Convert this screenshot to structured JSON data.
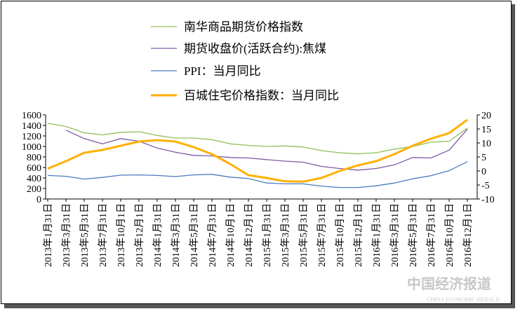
{
  "chart_data": {
    "type": "line",
    "categories": [
      "2013年1月31日",
      "2013年3月31日",
      "2013年5月31日",
      "2013年7月31日",
      "2013年10月1日",
      "2013年12月1日",
      "2014年1月31日",
      "2014年3月31日",
      "2014年5月31日",
      "2014年7月31日",
      "2014年10月1日",
      "2014年12月1日",
      "2015年1月31日",
      "2015年3月31日",
      "2015年5月31日",
      "2015年7月31日",
      "2015年10月1日",
      "2015年12月1日",
      "2016年1月31日",
      "2016年3月31日",
      "2016年5月31日",
      "2016年7月31日",
      "2016年10月1日",
      "2016年12月1日"
    ],
    "series": [
      {
        "name": "南华商品期货价格指数",
        "color": "#8fbf59",
        "values": [
          1440,
          1380,
          1260,
          1220,
          1270,
          1280,
          1210,
          1160,
          1160,
          1130,
          1050,
          1020,
          1000,
          1010,
          990,
          920,
          880,
          860,
          880,
          950,
          1000,
          1080,
          1100,
          1350
        ]
      },
      {
        "name": "期货收盘价(活跃合约):焦煤",
        "color": "#7b5aa6",
        "values": [
          null,
          1310,
          1150,
          1050,
          1150,
          1100,
          970,
          890,
          830,
          820,
          790,
          780,
          750,
          720,
          700,
          620,
          580,
          550,
          580,
          650,
          790,
          780,
          930,
          1330
        ]
      },
      {
        "name": "PPI：当月同比",
        "color": "#4a7cc1",
        "axis": "y2",
        "values": [
          -1.6,
          -1.9,
          -2.9,
          -2.3,
          -1.5,
          -1.4,
          -1.6,
          -2.0,
          -1.4,
          -1.2,
          -2.2,
          -2.7,
          -4.3,
          -4.6,
          -4.6,
          -5.4,
          -5.9,
          -5.9,
          -5.3,
          -4.3,
          -2.8,
          -1.7,
          0.1,
          3.3
        ]
      },
      {
        "name": "百城住宅价格指数：当月同比",
        "color": "#ffb000",
        "axis": "y2",
        "values": [
          0.8,
          3.5,
          6.5,
          7.5,
          9,
          10.5,
          11,
          10.5,
          8.5,
          6,
          2.5,
          -1.5,
          -2.5,
          -3.7,
          -3.8,
          -2.5,
          0,
          2,
          3.5,
          6,
          9,
          11.5,
          13.5,
          18.3
        ]
      }
    ],
    "ylim": [
      0,
      1600
    ],
    "yticks": [
      0,
      200,
      400,
      600,
      800,
      1000,
      1200,
      1400,
      1600
    ],
    "y2lim": [
      -10,
      20
    ],
    "y2ticks": [
      -10,
      -5,
      0,
      5,
      10,
      15,
      20
    ],
    "watermark": "中国经济报道",
    "watermark_sub": "CHINA ECONOMIC HERALD"
  }
}
